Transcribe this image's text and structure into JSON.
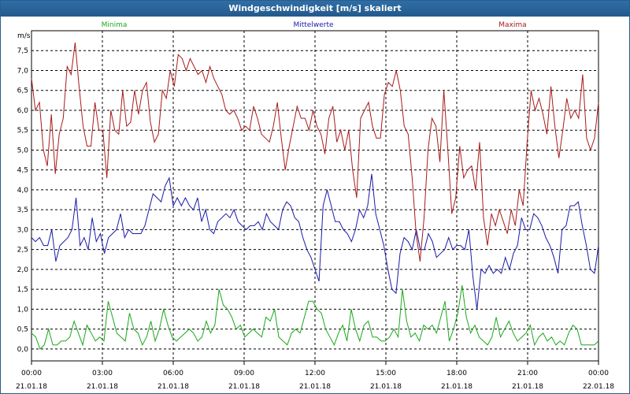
{
  "window": {
    "title": "Windgeschwindigkeit [m/s] skaliert"
  },
  "colors": {
    "minima": "#1aa81a",
    "mittel": "#1a1aa8",
    "maxima": "#a81a1a",
    "grid": "#000000"
  },
  "chart_data": {
    "type": "line",
    "title": "Windgeschwindigkeit [m/s] skaliert",
    "ylabel": "m/s",
    "ylim": [
      -0.3,
      8.0
    ],
    "xlim": [
      0,
      24
    ],
    "y_ticks": [
      "0,0",
      "0,5",
      "1,0",
      "1,5",
      "2,0",
      "2,5",
      "3,0",
      "3,5",
      "4,0",
      "4,5",
      "5,0",
      "5,5",
      "6,0",
      "6,5",
      "7,0",
      "7,5"
    ],
    "x_ticks": [
      {
        "time": "00:00",
        "date": "21.01.18"
      },
      {
        "time": "03:00",
        "date": "21.01.18"
      },
      {
        "time": "06:00",
        "date": "21.01.18"
      },
      {
        "time": "09:00",
        "date": "21.01.18"
      },
      {
        "time": "12:00",
        "date": "21.01.18"
      },
      {
        "time": "15:00",
        "date": "21.01.18"
      },
      {
        "time": "18:00",
        "date": "21.01.18"
      },
      {
        "time": "21:00",
        "date": "21.01.18"
      },
      {
        "time": "00:00",
        "date": "22.01.18"
      }
    ],
    "series": [
      {
        "name": "Minima",
        "values": [
          0.4,
          0.3,
          0.0,
          0.1,
          0.5,
          0.1,
          0.1,
          0.2,
          0.2,
          0.3,
          0.7,
          0.4,
          0.1,
          0.6,
          0.4,
          0.2,
          0.3,
          0.2,
          1.2,
          0.8,
          0.4,
          0.3,
          0.2,
          0.9,
          0.5,
          0.4,
          0.1,
          0.3,
          0.7,
          0.2,
          0.5,
          1.0,
          0.6,
          0.3,
          0.2,
          0.3,
          0.4,
          0.5,
          0.4,
          0.2,
          0.3,
          0.7,
          0.4,
          0.6,
          1.5,
          1.1,
          1.0,
          0.8,
          0.5,
          0.6,
          0.3,
          0.4,
          0.5,
          0.4,
          0.3,
          0.8,
          0.7,
          1.0,
          0.3,
          0.2,
          0.1,
          0.4,
          0.5,
          0.4,
          0.8,
          1.2,
          1.2,
          1.0,
          0.9,
          0.5,
          0.3,
          0.1,
          0.4,
          0.6,
          0.2,
          1.0,
          0.5,
          0.2,
          0.6,
          0.7,
          0.3,
          0.3,
          0.2,
          0.2,
          0.3,
          0.5,
          0.3,
          1.5,
          0.7,
          0.3,
          0.4,
          0.2,
          0.6,
          0.5,
          0.6,
          0.4,
          0.8,
          1.2,
          0.2,
          0.5,
          0.9,
          1.6,
          0.8,
          0.4,
          0.6,
          0.3,
          0.2,
          0.1,
          0.3,
          0.8,
          0.3,
          0.5,
          0.7,
          0.4,
          0.2,
          0.3,
          0.4,
          0.6,
          0.1,
          0.3,
          0.4,
          0.2,
          0.3,
          0.1,
          0.2,
          0.1,
          0.4,
          0.6,
          0.5,
          0.1,
          0.1,
          0.1,
          0.1,
          0.2
        ]
      },
      {
        "name": "Mittelwerte",
        "values": [
          2.8,
          2.7,
          2.8,
          2.6,
          2.6,
          3.0,
          2.2,
          2.6,
          2.7,
          2.8,
          3.0,
          3.8,
          2.6,
          2.8,
          2.5,
          3.3,
          2.7,
          2.9,
          2.4,
          2.8,
          2.9,
          3.0,
          3.4,
          2.8,
          3.0,
          2.9,
          2.9,
          2.9,
          3.1,
          3.5,
          3.9,
          3.8,
          3.7,
          4.1,
          4.3,
          3.6,
          3.8,
          3.6,
          3.8,
          3.6,
          3.5,
          3.8,
          3.2,
          3.5,
          3.0,
          2.9,
          3.2,
          3.3,
          3.4,
          3.3,
          3.5,
          3.2,
          3.1,
          3.0,
          3.1,
          3.1,
          3.2,
          3.0,
          3.4,
          3.2,
          3.1,
          3.0,
          3.5,
          3.7,
          3.6,
          3.3,
          3.2,
          2.8,
          2.5,
          2.3,
          2.0,
          1.7,
          3.6,
          4.0,
          3.6,
          3.2,
          3.2,
          3.0,
          2.9,
          2.7,
          3.0,
          3.5,
          3.3,
          3.6,
          4.4,
          3.4,
          3.0,
          2.6,
          2.0,
          1.5,
          1.4,
          2.4,
          2.8,
          2.7,
          2.5,
          3.0,
          2.5,
          2.5,
          2.9,
          2.7,
          2.3,
          2.4,
          2.5,
          2.8,
          2.5,
          2.6,
          2.6,
          2.5,
          3.0,
          1.8,
          1.0,
          2.0,
          1.9,
          2.1,
          1.9,
          2.0,
          1.9,
          2.3,
          2.0,
          2.4,
          2.6,
          3.3,
          3.0,
          3.0,
          3.4,
          3.3,
          3.1,
          2.8,
          2.6,
          2.3,
          1.9,
          3.0,
          3.1,
          3.6,
          3.6,
          3.7,
          3.1,
          2.6,
          2.0,
          1.9,
          2.6
        ]
      },
      {
        "name": "Maxima",
        "values": [
          6.8,
          6.0,
          6.2,
          5.0,
          4.6,
          5.9,
          4.4,
          5.4,
          5.8,
          7.1,
          6.9,
          7.7,
          6.6,
          5.6,
          5.1,
          5.1,
          6.2,
          5.5,
          5.5,
          4.3,
          6.0,
          5.5,
          5.4,
          6.5,
          5.6,
          5.7,
          6.5,
          5.9,
          6.5,
          6.7,
          5.7,
          5.2,
          5.4,
          6.5,
          6.3,
          7.0,
          6.6,
          7.4,
          7.3,
          7.0,
          7.3,
          7.1,
          6.9,
          7.0,
          6.7,
          7.1,
          6.8,
          6.6,
          6.4,
          6.0,
          5.9,
          6.0,
          5.8,
          5.5,
          5.6,
          5.5,
          6.1,
          5.8,
          5.4,
          5.3,
          5.2,
          5.6,
          6.2,
          5.3,
          4.5,
          5.1,
          5.6,
          6.1,
          5.8,
          5.8,
          5.5,
          6.0,
          5.6,
          5.4,
          4.9,
          5.8,
          6.1,
          5.2,
          5.5,
          5.0,
          5.5,
          4.5,
          3.8,
          5.8,
          6.0,
          6.2,
          5.6,
          5.3,
          5.3,
          6.4,
          6.7,
          6.6,
          7.0,
          6.5,
          5.6,
          5.4,
          4.3,
          2.9,
          2.2,
          3.3,
          5.0,
          5.8,
          5.6,
          4.7,
          6.5,
          5.0,
          3.4,
          3.8,
          5.1,
          4.3,
          4.5,
          4.6,
          4.0,
          5.2,
          3.3,
          2.6,
          3.4,
          3.1,
          3.5,
          3.2,
          2.9,
          3.5,
          3.1,
          4.0,
          3.6,
          5.2,
          6.5,
          6.0,
          6.3,
          5.9,
          5.4,
          6.6,
          5.6,
          4.8,
          5.5,
          6.3,
          5.8,
          6.0,
          5.8,
          6.9,
          5.3,
          5.0,
          5.3,
          6.2
        ]
      }
    ]
  }
}
